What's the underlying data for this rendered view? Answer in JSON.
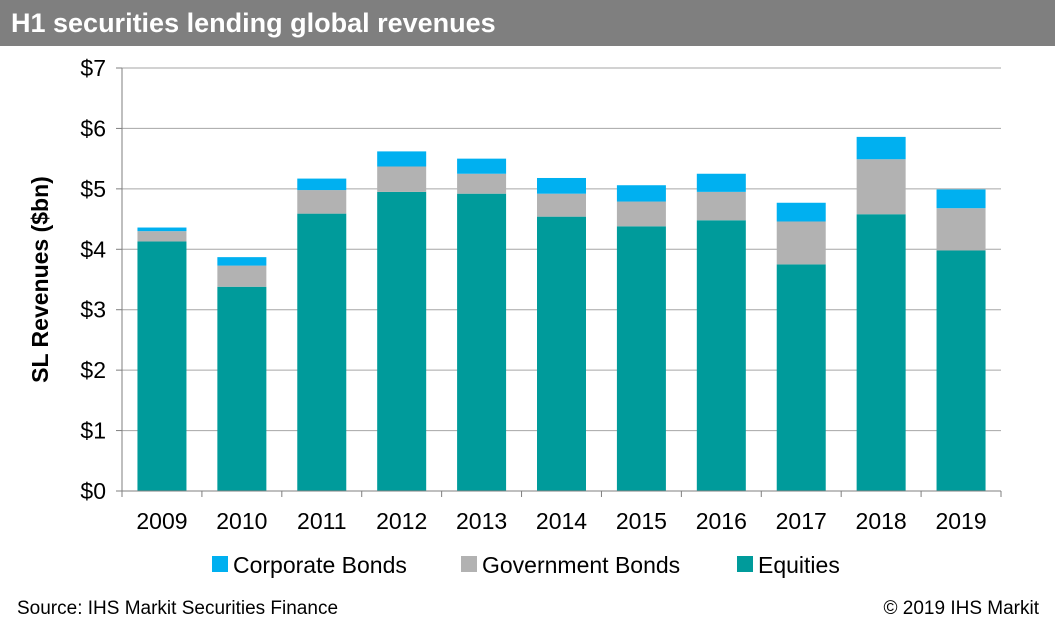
{
  "header": {
    "title": "H1 securities lending global revenues"
  },
  "footer": {
    "source": "Source: IHS Markit Securities Finance",
    "copyright": "© 2019 IHS Markit"
  },
  "colors": {
    "title_bar": "#7f7f7f",
    "equities": "#009b9b",
    "government_bonds": "#b2b2b2",
    "corporate_bonds": "#00b0f0",
    "gridline": "#a6a6a6"
  },
  "chart_data": {
    "type": "bar",
    "stacked": true,
    "title": "H1 securities lending global revenues",
    "xlabel": "",
    "ylabel": "SL Revenues ($bn)",
    "ylim": [
      0,
      7
    ],
    "yticks": [
      0,
      1,
      2,
      3,
      4,
      5,
      6,
      7
    ],
    "ytick_labels": [
      "$0",
      "$1",
      "$2",
      "$3",
      "$4",
      "$5",
      "$6",
      "$7"
    ],
    "grid": true,
    "legend_position": "bottom",
    "categories": [
      "2009",
      "2010",
      "2011",
      "2012",
      "2013",
      "2014",
      "2015",
      "2016",
      "2017",
      "2018",
      "2019"
    ],
    "series": [
      {
        "name": "Equities",
        "color": "#009b9b",
        "values": [
          4.13,
          3.38,
          4.59,
          4.95,
          4.92,
          4.54,
          4.38,
          4.48,
          3.75,
          4.58,
          3.98
        ]
      },
      {
        "name": "Government Bonds",
        "color": "#b2b2b2",
        "values": [
          0.17,
          0.35,
          0.39,
          0.42,
          0.33,
          0.38,
          0.41,
          0.47,
          0.71,
          0.91,
          0.7
        ]
      },
      {
        "name": "Corporate Bonds",
        "color": "#00b0f0",
        "values": [
          0.06,
          0.14,
          0.19,
          0.25,
          0.25,
          0.26,
          0.27,
          0.3,
          0.31,
          0.37,
          0.31
        ]
      }
    ],
    "legend_order": [
      "Corporate Bonds",
      "Government Bonds",
      "Equities"
    ]
  }
}
